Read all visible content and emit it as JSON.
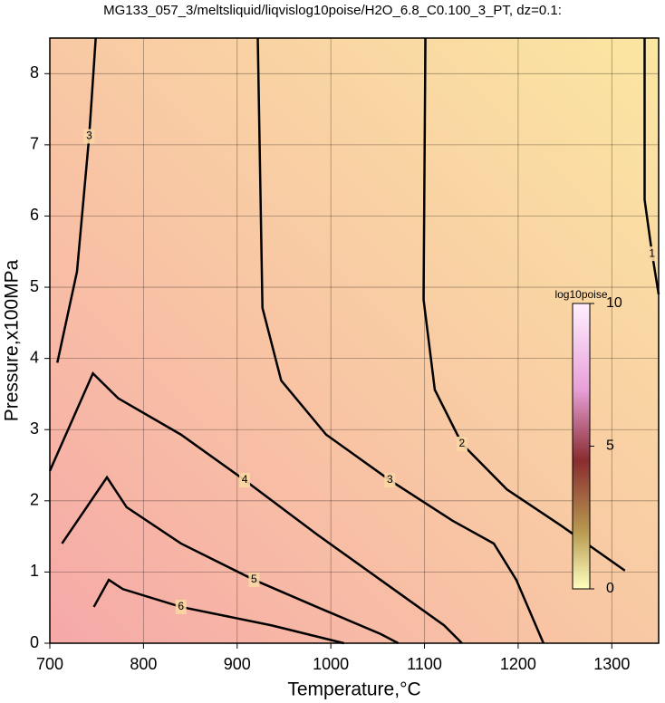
{
  "chart_data": {
    "type": "contour",
    "title": "MG133_057_3/meltsliquid/liqvislog10poise/H2O_6.8_C0.100_3_PT, dz=0.1:",
    "xlabel": "Temperature,°C",
    "ylabel": "Pressure,x100MPa",
    "xlim": [
      700,
      1350
    ],
    "ylim": [
      0,
      8.5
    ],
    "xticks": [
      700,
      800,
      900,
      1000,
      1100,
      1200,
      1300
    ],
    "yticks": [
      0,
      1,
      2,
      3,
      4,
      5,
      6,
      7,
      8
    ],
    "grid": true,
    "line_color": "#000000",
    "contours": [
      {
        "level": 1,
        "x": [
          1335,
          1335,
          1343,
          1350
        ],
        "y": [
          8.5,
          6.23,
          5.47,
          4.9
        ]
      },
      {
        "level": 2,
        "x": [
          1101,
          1099,
          1111,
          1140,
          1188,
          1246,
          1314
        ],
        "y": [
          8.5,
          4.83,
          3.56,
          2.8,
          2.16,
          1.65,
          1.02
        ]
      },
      {
        "level": 3,
        "x": [
          922,
          927,
          947,
          995,
          1063,
          1130,
          1174,
          1198,
          1227
        ],
        "y": [
          8.5,
          4.71,
          3.69,
          2.93,
          2.29,
          1.72,
          1.4,
          0.89,
          0
        ]
      },
      {
        "level": 3,
        "x": [
          708,
          729,
          742,
          749
        ],
        "y": [
          3.94,
          5.22,
          7.12,
          8.5
        ]
      },
      {
        "level": 4,
        "x": [
          700,
          746,
          773,
          840,
          908,
          985,
          1053,
          1121,
          1140
        ],
        "y": [
          2.42,
          3.79,
          3.44,
          2.93,
          2.29,
          1.53,
          0.89,
          0.25,
          0
        ]
      },
      {
        "level": 5,
        "x": [
          713,
          761,
          782,
          840,
          918,
          985,
          1053,
          1072
        ],
        "y": [
          1.4,
          2.33,
          1.91,
          1.4,
          0.89,
          0.51,
          0.13,
          0
        ]
      },
      {
        "level": 6,
        "x": [
          747,
          763,
          778,
          840,
          937,
          1014
        ],
        "y": [
          0.51,
          0.89,
          0.76,
          0.51,
          0.25,
          0
        ]
      }
    ],
    "colorbar": {
      "label": "log10poise",
      "lim": [
        0,
        10
      ],
      "ticks": [
        0,
        5,
        10
      ]
    }
  }
}
